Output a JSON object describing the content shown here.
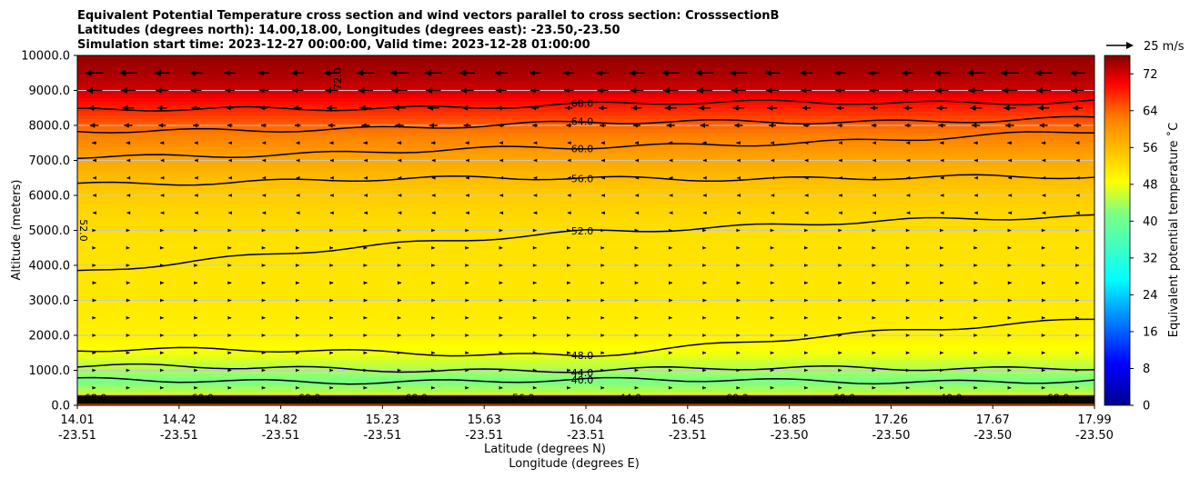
{
  "chart_data": {
    "type": "contourf",
    "title_lines": [
      "Equivalent Potential Temperature cross section and wind vectors parallel to cross section: CrosssectionB",
      "Latitudes (degrees north): 14.00,18.00, Longitudes (degrees east): -23.50,-23.50",
      "Simulation start time: 2023-12-27 00:00:00, Valid time: 2023-12-28 01:00:00"
    ],
    "ylabel": "Altitude (meters)",
    "xlabel_lat": "Latitude (degrees N)",
    "xlabel_lon": "Longitude (degrees E)",
    "ylim": [
      0,
      10000
    ],
    "yticks": [
      "0.0",
      "1000.0",
      "2000.0",
      "3000.0",
      "4000.0",
      "5000.0",
      "6000.0",
      "7000.0",
      "8000.0",
      "9000.0",
      "10000.0"
    ],
    "xticks": [
      {
        "lat": "14.01",
        "lon": "-23.51"
      },
      {
        "lat": "14.42",
        "lon": "-23.51"
      },
      {
        "lat": "14.82",
        "lon": "-23.51"
      },
      {
        "lat": "15.23",
        "lon": "-23.51"
      },
      {
        "lat": "15.63",
        "lon": "-23.51"
      },
      {
        "lat": "16.04",
        "lon": "-23.51"
      },
      {
        "lat": "16.45",
        "lon": "-23.51"
      },
      {
        "lat": "16.85",
        "lon": "-23.50"
      },
      {
        "lat": "17.26",
        "lon": "-23.50"
      },
      {
        "lat": "17.67",
        "lon": "-23.50"
      },
      {
        "lat": "17.99",
        "lon": "-23.50"
      }
    ],
    "colorbar": {
      "label": "Equivalent potential temperature $^\\circ$C",
      "label_text": "Equivalent potential temperature ˚C",
      "min": 0,
      "max": 76,
      "ticks": [
        "0",
        "8",
        "16",
        "24",
        "32",
        "40",
        "48",
        "56",
        "64",
        "72"
      ]
    },
    "quiver_key": "25 m/s",
    "theta_e_profile": {
      "altitudes": [
        0,
        300,
        700,
        1000,
        1500,
        2000,
        3000,
        4000,
        5000,
        6000,
        6500,
        7000,
        7500,
        8000,
        8500,
        9000,
        9500,
        10000
      ],
      "values": [
        60,
        46,
        41,
        44,
        48,
        50,
        51,
        51.5,
        52,
        54,
        56,
        58,
        61,
        64,
        68,
        72,
        74,
        75
      ]
    },
    "contours": [
      {
        "level": "72.0",
        "label": "72.0",
        "alt_left": 9700,
        "alt_mid": 9700,
        "alt_right": 9700
      },
      {
        "level": "68.0",
        "label": "68.0",
        "alt_left": 8400,
        "alt_mid": 8600,
        "alt_right": 8700
      },
      {
        "level": "64.0",
        "label": "64.0",
        "alt_left": 7800,
        "alt_mid": 8050,
        "alt_right": 8200
      },
      {
        "level": "60.0",
        "label": "60.0",
        "alt_left": 7100,
        "alt_mid": 7350,
        "alt_right": 7800
      },
      {
        "level": "56.0",
        "label": "56.0",
        "alt_left": 6350,
        "alt_mid": 6500,
        "alt_right": 6500
      },
      {
        "level": "52.0",
        "label": "52.0",
        "alt_left": 3850,
        "alt_mid": 5000,
        "alt_right": 5400
      },
      {
        "level": "48.0",
        "label": "48.0",
        "alt_left": 1600,
        "alt_mid": 1450,
        "alt_right": 2500
      },
      {
        "level": "44.0",
        "label": "44.0",
        "alt_left": 1100,
        "alt_mid": 1000,
        "alt_right": 1100
      },
      {
        "level": "40.0",
        "label": "40.0",
        "alt_left": 700,
        "alt_mid": 700,
        "alt_right": 700
      }
    ],
    "surface_labels": [
      "68.0",
      "60.0",
      "60.0",
      "68.0",
      "56.0",
      "44.0",
      "60.0",
      "60.0",
      "40.0",
      "68.0"
    ],
    "wind_rows": [
      {
        "alt": 9500,
        "dir": "left",
        "speed": 21
      },
      {
        "alt": 9000,
        "dir": "left",
        "speed": 18
      },
      {
        "alt": 8500,
        "dir": "left",
        "speed": 14
      },
      {
        "alt": 8000,
        "dir": "left",
        "speed": 10
      },
      {
        "alt": 7500,
        "dir": "left",
        "speed": 5
      },
      {
        "alt": 7000,
        "dir": "left",
        "speed": 3
      },
      {
        "alt": 6500,
        "dir": "left",
        "speed": 1
      },
      {
        "alt": 6000,
        "dir": "left",
        "speed": 1
      },
      {
        "alt": 5500,
        "dir": "left",
        "speed": 1
      },
      {
        "alt": 5000,
        "dir": "right",
        "speed": 1
      },
      {
        "alt": 4500,
        "dir": "right",
        "speed": 2
      },
      {
        "alt": 4000,
        "dir": "right",
        "speed": 3
      },
      {
        "alt": 3500,
        "dir": "right",
        "speed": 4
      },
      {
        "alt": 3000,
        "dir": "right",
        "speed": 4
      },
      {
        "alt": 2500,
        "dir": "right",
        "speed": 3
      },
      {
        "alt": 2000,
        "dir": "right",
        "speed": 2
      },
      {
        "alt": 1500,
        "dir": "right",
        "speed": 2
      },
      {
        "alt": 1000,
        "dir": "right",
        "speed": 1
      },
      {
        "alt": 500,
        "dir": "right",
        "speed": 1
      }
    ]
  }
}
